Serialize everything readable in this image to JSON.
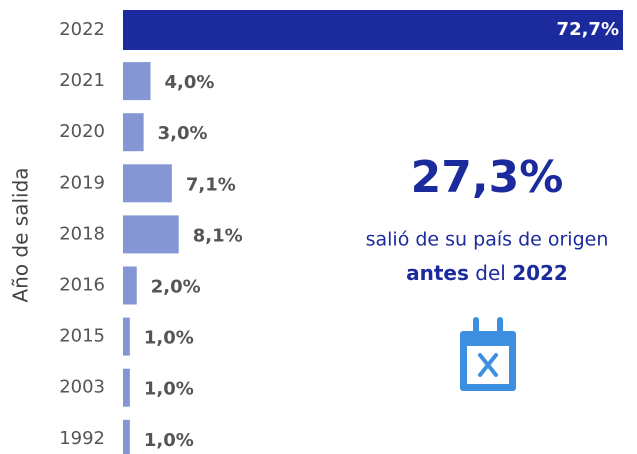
{
  "chart_data": {
    "type": "bar",
    "orientation": "horizontal",
    "y_label": "Año de salida",
    "categories": [
      "2022",
      "2021",
      "2020",
      "2019",
      "2018",
      "2016",
      "2015",
      "2003",
      "1992"
    ],
    "values": [
      72.7,
      4.0,
      3.0,
      7.1,
      8.1,
      2.0,
      1.0,
      1.0,
      1.0
    ],
    "value_labels": [
      "72,7%",
      "4,0%",
      "3,0%",
      "7,1%",
      "8,1%",
      "2,0%",
      "1,0%",
      "1,0%",
      "1,0%"
    ],
    "colors": [
      "#1b2a9c",
      "#8497d4",
      "#8497d4",
      "#8497d4",
      "#8497d4",
      "#8497d4",
      "#8497d4",
      "#8497d4",
      "#8497d4"
    ],
    "annotation": {
      "headline": "27,3%",
      "line1": "salió de su país de origen",
      "line2": [
        "antes",
        "del",
        "2022"
      ]
    }
  }
}
